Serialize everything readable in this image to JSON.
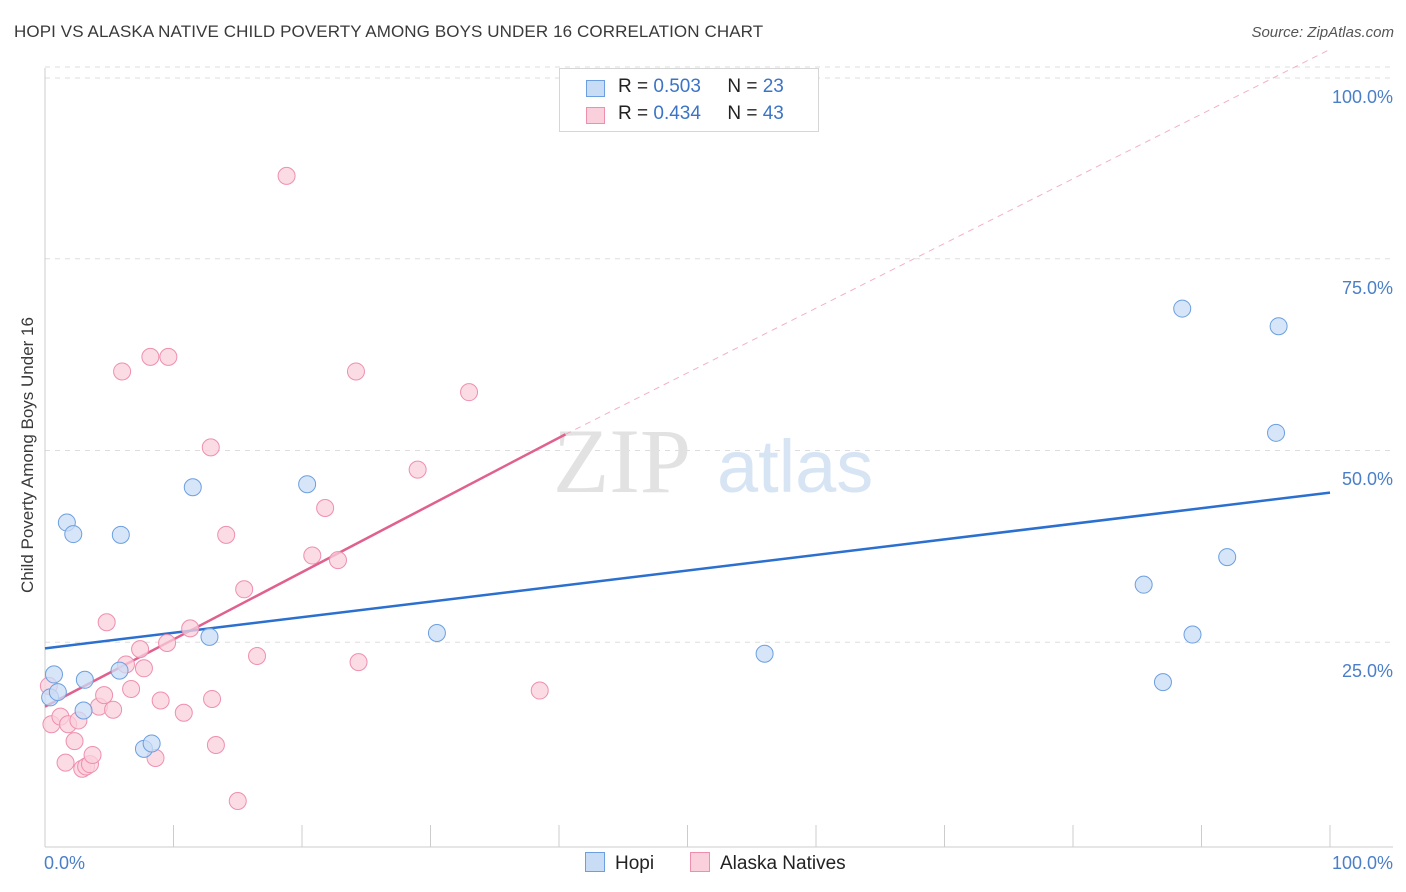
{
  "title": "HOPI VS ALASKA NATIVE CHILD POVERTY AMONG BOYS UNDER 16 CORRELATION CHART",
  "source": "Source: ZipAtlas.com",
  "colors": {
    "hopi": "#6b9fe0",
    "hopi_fill": "#c9dcf5",
    "alaska": "#ef8fae",
    "alaska_fill": "#f9d0dc",
    "hopi_line": "#2b6fcf",
    "alaska_line": "#e0608e",
    "tick": "#4a7fc8"
  },
  "legend": {
    "hopi": {
      "r_label": "R =",
      "r_value": "0.503",
      "n_label": "N =",
      "n_value": "23"
    },
    "alaska": {
      "r_label": "R =",
      "r_value": "0.434",
      "n_label": "N =",
      "n_value": "43"
    }
  },
  "bottom_legend": {
    "hopi": "Hopi",
    "alaska": "Alaska Natives"
  },
  "watermark": {
    "zip": "ZIP",
    "atlas": "atlas"
  },
  "chart_data": {
    "type": "scatter",
    "title": "HOPI VS ALASKA NATIVE CHILD POVERTY AMONG BOYS UNDER 16 CORRELATION CHART",
    "xlabel": "",
    "ylabel": "Child Poverty Among Boys Under 16",
    "xlim": [
      0,
      100
    ],
    "ylim": [
      0,
      100
    ],
    "x_tick_labels": [
      "0.0%",
      "100.0%"
    ],
    "y_tick_labels": [
      "25.0%",
      "50.0%",
      "75.0%",
      "100.0%"
    ],
    "y_ticks": [
      25,
      50,
      75,
      100
    ],
    "legend_position": "top-center",
    "series": [
      {
        "name": "Hopi",
        "points": [
          [
            0.4,
            19.5
          ],
          [
            0.7,
            22.5
          ],
          [
            1.0,
            20.2
          ],
          [
            1.7,
            42.3
          ],
          [
            2.2,
            40.8
          ],
          [
            3.1,
            21.8
          ],
          [
            3.0,
            17.8
          ],
          [
            5.8,
            23.0
          ],
          [
            5.9,
            40.7
          ],
          [
            7.7,
            12.8
          ],
          [
            8.3,
            13.5
          ],
          [
            11.5,
            46.9
          ],
          [
            12.8,
            27.4
          ],
          [
            20.4,
            47.3
          ],
          [
            30.5,
            27.9
          ],
          [
            56.0,
            25.2
          ],
          [
            85.5,
            34.2
          ],
          [
            87.0,
            21.5
          ],
          [
            88.5,
            70.2
          ],
          [
            89.3,
            27.7
          ],
          [
            92.0,
            37.8
          ],
          [
            95.8,
            54.0
          ],
          [
            96.0,
            67.9
          ]
        ],
        "trend": {
          "x": [
            0,
            100
          ],
          "y": [
            25.9,
            46.2
          ]
        }
      },
      {
        "name": "Alaska Natives",
        "points": [
          [
            0.3,
            21.0
          ],
          [
            0.5,
            16.0
          ],
          [
            1.2,
            17.0
          ],
          [
            1.6,
            11.0
          ],
          [
            1.8,
            16.0
          ],
          [
            2.3,
            13.8
          ],
          [
            2.6,
            16.5
          ],
          [
            2.9,
            10.2
          ],
          [
            3.2,
            10.5
          ],
          [
            3.5,
            10.8
          ],
          [
            3.7,
            12.0
          ],
          [
            4.2,
            18.3
          ],
          [
            4.6,
            19.8
          ],
          [
            4.8,
            29.3
          ],
          [
            5.3,
            17.9
          ],
          [
            6.3,
            23.8
          ],
          [
            6.7,
            20.6
          ],
          [
            7.4,
            25.8
          ],
          [
            7.7,
            23.3
          ],
          [
            8.2,
            63.9
          ],
          [
            8.6,
            11.6
          ],
          [
            9.0,
            19.1
          ],
          [
            9.5,
            26.6
          ],
          [
            9.6,
            63.9
          ],
          [
            10.8,
            17.5
          ],
          [
            11.3,
            28.5
          ],
          [
            12.9,
            52.1
          ],
          [
            13.0,
            19.3
          ],
          [
            13.3,
            13.3
          ],
          [
            14.1,
            40.7
          ],
          [
            15.0,
            6.0
          ],
          [
            15.5,
            33.6
          ],
          [
            16.5,
            24.9
          ],
          [
            18.8,
            87.5
          ],
          [
            20.8,
            38.0
          ],
          [
            21.8,
            44.2
          ],
          [
            22.8,
            37.4
          ],
          [
            24.2,
            62.0
          ],
          [
            24.4,
            24.1
          ],
          [
            29.0,
            49.2
          ],
          [
            33.0,
            59.3
          ],
          [
            38.5,
            20.4
          ],
          [
            6.0,
            62.0
          ]
        ],
        "trend": {
          "x": [
            0,
            40.5
          ],
          "y": [
            18.3,
            53.8
          ]
        },
        "trend_extension": {
          "x": [
            40.5,
            100
          ],
          "y": [
            53.8,
            104.0
          ]
        }
      }
    ]
  }
}
